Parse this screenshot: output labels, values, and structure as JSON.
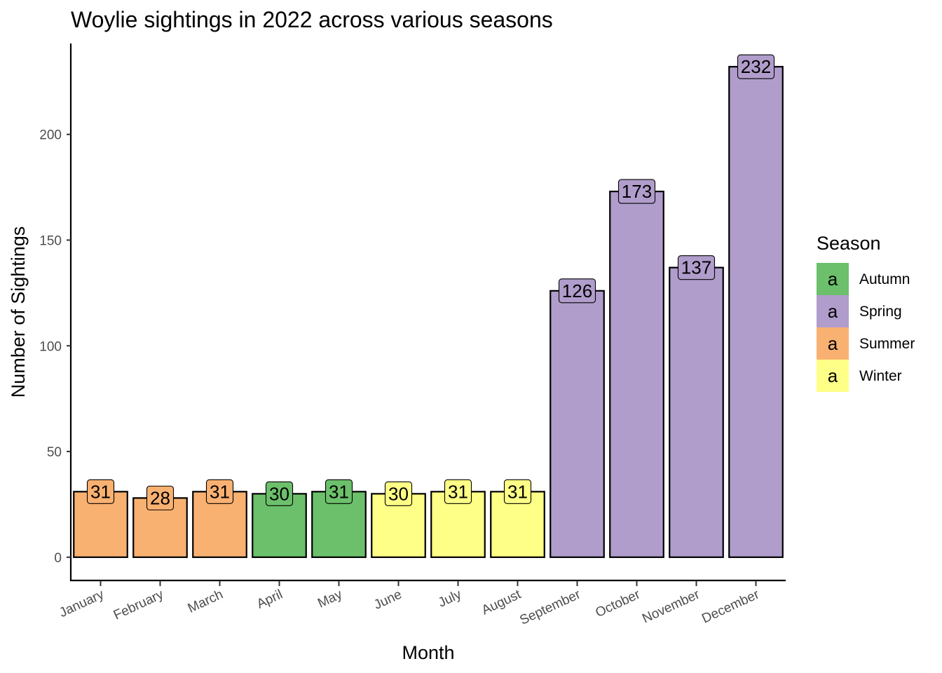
{
  "chart_data": {
    "type": "bar",
    "title": "Woylie sightings in 2022 across various seasons",
    "xlabel": "Month",
    "ylabel": "Number of Sightings",
    "categories": [
      "January",
      "February",
      "March",
      "April",
      "May",
      "June",
      "July",
      "August",
      "September",
      "October",
      "November",
      "December"
    ],
    "values": [
      31,
      28,
      31,
      30,
      31,
      30,
      31,
      31,
      126,
      173,
      137,
      232
    ],
    "season": [
      "Summer",
      "Summer",
      "Summer",
      "Autumn",
      "Autumn",
      "Winter",
      "Winter",
      "Winter",
      "Spring",
      "Spring",
      "Spring",
      "Spring"
    ],
    "yticks": [
      0,
      50,
      100,
      150,
      200
    ],
    "ylim": [
      -11,
      243
    ],
    "grid": false,
    "legend": {
      "title": "Season",
      "position": "right",
      "key_glyph": "a",
      "entries": [
        {
          "name": "Autumn",
          "color": "#6cc06b"
        },
        {
          "name": "Spring",
          "color": "#b09dcb"
        },
        {
          "name": "Summer",
          "color": "#f9b171"
        },
        {
          "name": "Winter",
          "color": "#feff86"
        }
      ]
    }
  }
}
